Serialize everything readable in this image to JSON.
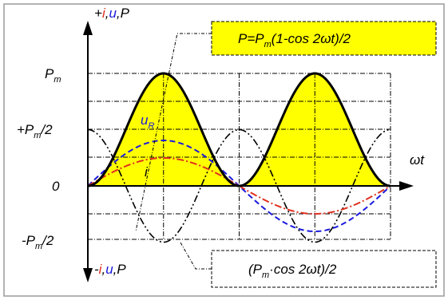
{
  "diagram": {
    "axis": {
      "y_top_label": {
        "sign": "+",
        "i": "i",
        "sep1": ",",
        "u": "u",
        "sep2": ",",
        "P": "P"
      },
      "y_bottom_label": {
        "sign": "-",
        "i": "i",
        "sep1": ",",
        "u": "u",
        "sep2": ",",
        "P": "P"
      },
      "x_label": "ωt"
    },
    "ticks": {
      "pm": {
        "main": "P",
        "sub": "m"
      },
      "half_pm": {
        "pre": "+P",
        "sub": "m",
        "post": "/2"
      },
      "zero": "0",
      "neg_half_pm": {
        "pre": "-P",
        "sub": "m",
        "post": "/2"
      }
    },
    "curve_labels": {
      "uR": {
        "main": "u",
        "sub": "R"
      },
      "i": "i"
    },
    "formula_top": {
      "pre": "P=P",
      "sub": "m",
      "post": "(1-cos 2ωt)/2"
    },
    "formula_bottom": {
      "pre": "(P",
      "sub": "m",
      "post": "·cos 2ωt)/2"
    },
    "colors": {
      "power_fill": "#ffff00",
      "power_curve": "#000000",
      "voltage": "#1a1adc",
      "current": "#e03020",
      "axis": "#000000",
      "grid": "#000000",
      "frame": "#9a9a9a"
    }
  }
}
